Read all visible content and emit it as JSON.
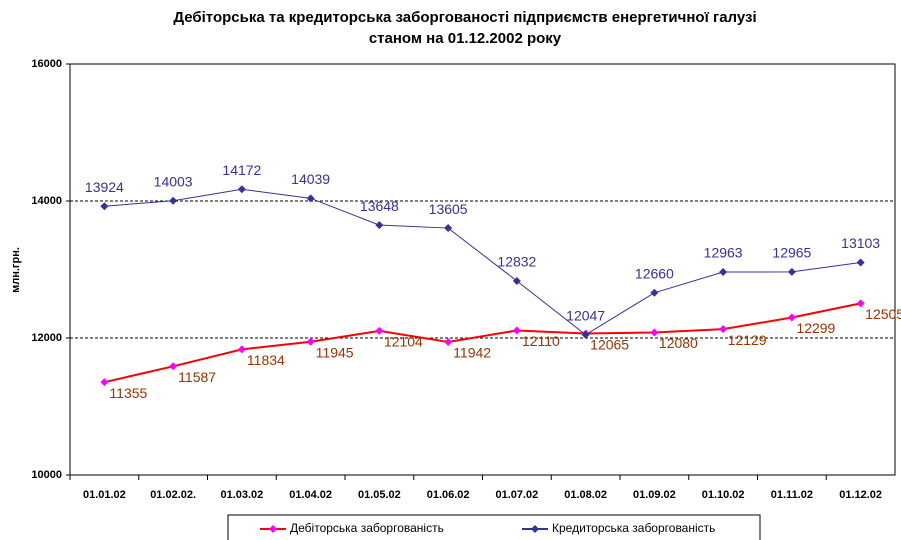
{
  "chart_data": {
    "type": "line",
    "title": "Дебіторська та кредиторська заборгованості підприємств енергетичної галузі",
    "subtitle": "станом на 01.12.2002 року",
    "y_label": "млн.грн.",
    "categories": [
      "01.01.02",
      "01.02.02.",
      "01.03.02",
      "01.04.02",
      "01.05.02",
      "01.06.02",
      "01.07.02",
      "01.08.02",
      "01.09.02",
      "01.10.02",
      "01.11.02",
      "01.12.02"
    ],
    "series": [
      {
        "name": "Дебіторська заборгованість",
        "color": "#ff0000",
        "marker_color": "#ff00ff",
        "label_color": "#993300",
        "values": [
          11355,
          11587,
          11834,
          11945,
          12104,
          11942,
          12110,
          12065,
          12080,
          12129,
          12299,
          12505
        ]
      },
      {
        "name": "Кредиторська заборгованість",
        "color": "#333399",
        "marker_color": "#333399",
        "label_color": "#333399",
        "values": [
          13924,
          14003,
          14172,
          14039,
          13648,
          13605,
          12832,
          12047,
          12660,
          12963,
          12965,
          13103
        ]
      }
    ],
    "ylim": [
      10000,
      16000
    ],
    "yticks": [
      10000,
      12000,
      14000,
      16000
    ],
    "grid": true,
    "legend": "bottom"
  }
}
